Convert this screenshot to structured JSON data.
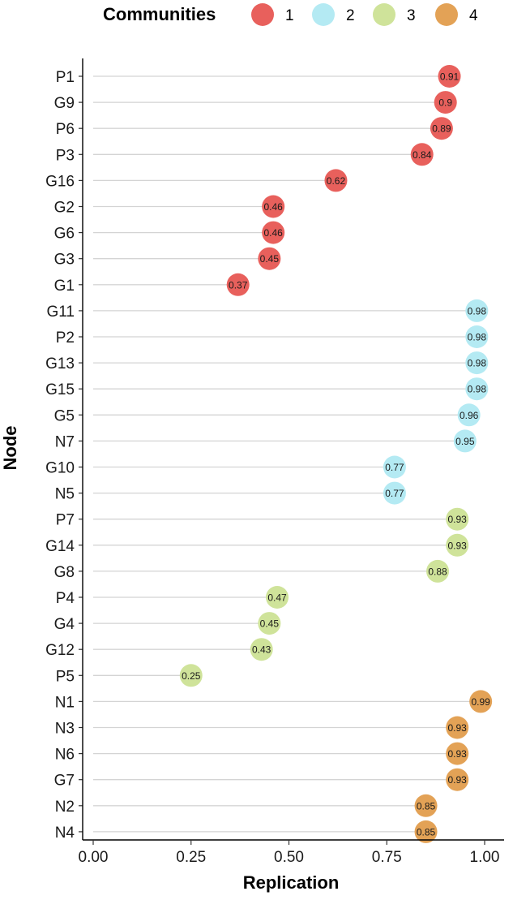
{
  "chart_data": {
    "type": "scatter",
    "subtype": "lollipop",
    "xlabel": "Replication",
    "ylabel": "Node",
    "xlim": [
      0,
      1
    ],
    "xticks": [
      "0.00",
      "0.25",
      "0.50",
      "0.75",
      "1.00"
    ],
    "xtick_values": [
      0,
      0.25,
      0.5,
      0.75,
      1.0
    ],
    "grid": "horizontal segments from 0 to each value",
    "legend": {
      "title": "Communities",
      "position": "top",
      "entries": [
        {
          "label": "1",
          "color": "#e8605c"
        },
        {
          "label": "2",
          "color": "#b4eaf3"
        },
        {
          "label": "3",
          "color": "#cfe39a"
        },
        {
          "label": "4",
          "color": "#e3a256"
        }
      ]
    },
    "points": [
      {
        "node": "P1",
        "value": 0.91,
        "label": "0.91",
        "community": "1"
      },
      {
        "node": "G9",
        "value": 0.9,
        "label": "0.9",
        "community": "1"
      },
      {
        "node": "P6",
        "value": 0.89,
        "label": "0.89",
        "community": "1"
      },
      {
        "node": "P3",
        "value": 0.84,
        "label": "0.84",
        "community": "1"
      },
      {
        "node": "G16",
        "value": 0.62,
        "label": "0.62",
        "community": "1"
      },
      {
        "node": "G2",
        "value": 0.46,
        "label": "0.46",
        "community": "1"
      },
      {
        "node": "G6",
        "value": 0.46,
        "label": "0.46",
        "community": "1"
      },
      {
        "node": "G3",
        "value": 0.45,
        "label": "0.45",
        "community": "1"
      },
      {
        "node": "G1",
        "value": 0.37,
        "label": "0.37",
        "community": "1"
      },
      {
        "node": "G11",
        "value": 0.98,
        "label": "0.98",
        "community": "2"
      },
      {
        "node": "P2",
        "value": 0.98,
        "label": "0.98",
        "community": "2"
      },
      {
        "node": "G13",
        "value": 0.98,
        "label": "0.98",
        "community": "2"
      },
      {
        "node": "G15",
        "value": 0.98,
        "label": "0.98",
        "community": "2"
      },
      {
        "node": "G5",
        "value": 0.96,
        "label": "0.96",
        "community": "2"
      },
      {
        "node": "N7",
        "value": 0.95,
        "label": "0.95",
        "community": "2"
      },
      {
        "node": "G10",
        "value": 0.77,
        "label": "0.77",
        "community": "2"
      },
      {
        "node": "N5",
        "value": 0.77,
        "label": "0.77",
        "community": "2"
      },
      {
        "node": "P7",
        "value": 0.93,
        "label": "0.93",
        "community": "3"
      },
      {
        "node": "G14",
        "value": 0.93,
        "label": "0.93",
        "community": "3"
      },
      {
        "node": "G8",
        "value": 0.88,
        "label": "0.88",
        "community": "3"
      },
      {
        "node": "P4",
        "value": 0.47,
        "label": "0.47",
        "community": "3"
      },
      {
        "node": "G4",
        "value": 0.45,
        "label": "0.45",
        "community": "3"
      },
      {
        "node": "G12",
        "value": 0.43,
        "label": "0.43",
        "community": "3"
      },
      {
        "node": "P5",
        "value": 0.25,
        "label": "0.25",
        "community": "3"
      },
      {
        "node": "N1",
        "value": 0.99,
        "label": "0.99",
        "community": "4"
      },
      {
        "node": "N3",
        "value": 0.93,
        "label": "0.93",
        "community": "4"
      },
      {
        "node": "N6",
        "value": 0.93,
        "label": "0.93",
        "community": "4"
      },
      {
        "node": "G7",
        "value": 0.93,
        "label": "0.93",
        "community": "4"
      },
      {
        "node": "N2",
        "value": 0.85,
        "label": "0.85",
        "community": "4"
      },
      {
        "node": "N4",
        "value": 0.85,
        "label": "0.85",
        "community": "4"
      }
    ]
  }
}
